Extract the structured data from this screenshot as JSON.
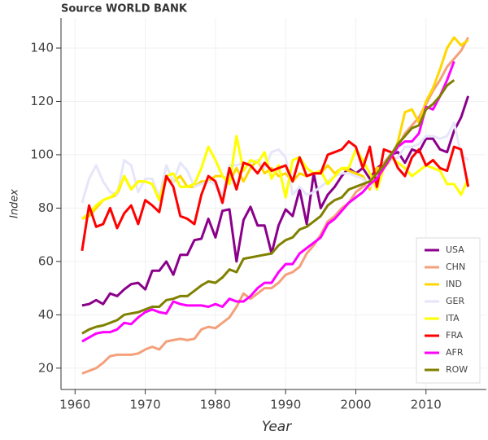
{
  "chart_data": {
    "type": "line",
    "title": "Source WORLD BANK",
    "xlabel": "Year",
    "ylabel": "Index",
    "x": [
      1961,
      1962,
      1963,
      1964,
      1965,
      1966,
      1967,
      1968,
      1969,
      1970,
      1971,
      1972,
      1973,
      1974,
      1975,
      1976,
      1977,
      1978,
      1979,
      1980,
      1981,
      1982,
      1983,
      1984,
      1985,
      1986,
      1987,
      1988,
      1989,
      1990,
      1991,
      1992,
      1993,
      1994,
      1995,
      1996,
      1997,
      1998,
      1999,
      2000,
      2001,
      2002,
      2003,
      2004,
      2005,
      2006,
      2007,
      2008,
      2009,
      2010,
      2011,
      2012,
      2013,
      2014,
      2015,
      2016
    ],
    "series": [
      {
        "name": "USA",
        "color": "#8b008b",
        "values": [
          43.5,
          44,
          45.5,
          44,
          48,
          47,
          49.5,
          51.5,
          52,
          49.5,
          56.5,
          56.5,
          60,
          55,
          62.5,
          62.5,
          68,
          68.5,
          76,
          69,
          79,
          79.5,
          60,
          75.5,
          80.5,
          73.5,
          73.5,
          63,
          73.5,
          79.5,
          77,
          87,
          74,
          93,
          80,
          85,
          88,
          92,
          95,
          93,
          95,
          91,
          95,
          97,
          100,
          101,
          97,
          102,
          101,
          106,
          106,
          102,
          101,
          109,
          114,
          122
        ]
      },
      {
        "name": "CHN",
        "color": "#f4a07a",
        "values": [
          18,
          19,
          20,
          22,
          24.5,
          25,
          25,
          25,
          25.5,
          27,
          28,
          27,
          30,
          30.5,
          31,
          30.5,
          31,
          34.5,
          35.5,
          35,
          37,
          39,
          43,
          48,
          46,
          48,
          50,
          50,
          52,
          55,
          56,
          58,
          63,
          66,
          70,
          75,
          77,
          80,
          82,
          86,
          88,
          90,
          94,
          97,
          100,
          103,
          108,
          111,
          114,
          119,
          124,
          128,
          133,
          136,
          139,
          144
        ]
      },
      {
        "name": "IND",
        "color": "#ffd700",
        "values": [
          76,
          77,
          80,
          83,
          84,
          85,
          92,
          87,
          90,
          90,
          89,
          83,
          91,
          90,
          92,
          88,
          88,
          90,
          90,
          92,
          92,
          90,
          95,
          90,
          95,
          98,
          93,
          95,
          92,
          93,
          90,
          93,
          92,
          93,
          93,
          96,
          93,
          95,
          94,
          93,
          92,
          87,
          95,
          95,
          98,
          105,
          116,
          117,
          112,
          120,
          125,
          132,
          140,
          144,
          141,
          143
        ]
      },
      {
        "name": "GER",
        "color": "#e6e6fa",
        "values": [
          82,
          91,
          96,
          90,
          86,
          85,
          98,
          96,
          86,
          91,
          91,
          84,
          96,
          90,
          97,
          94,
          88,
          89,
          90,
          89,
          85,
          96,
          96,
          97,
          97,
          98,
          95,
          101,
          102,
          99,
          85,
          88,
          85,
          86,
          88,
          90,
          92,
          93,
          93,
          92,
          91,
          88,
          92,
          96,
          98,
          99,
          103,
          103,
          104,
          107,
          107,
          106,
          107,
          112,
          100,
          98
        ]
      },
      {
        "name": "ITA",
        "color": "#ffff00",
        "values": [
          76,
          78,
          81,
          83,
          84,
          86,
          92,
          87,
          90,
          90,
          89,
          83,
          92,
          93,
          88,
          88,
          89,
          95,
          103,
          98,
          92,
          89,
          107,
          94,
          98,
          97,
          101,
          91,
          96,
          84,
          98,
          99,
          95,
          93,
          94,
          89,
          92,
          95,
          95,
          102,
          98,
          93,
          87,
          95,
          99,
          97,
          95,
          92,
          94,
          96,
          95,
          94,
          89,
          89,
          85,
          91
        ]
      },
      {
        "name": "FRA",
        "color": "#ff0000",
        "values": [
          64,
          81,
          73,
          74,
          80,
          72.5,
          78,
          81,
          74,
          83,
          81,
          78.5,
          92,
          88,
          77,
          76,
          74,
          85,
          92,
          90,
          82,
          95,
          87,
          97,
          96,
          93,
          97,
          94,
          95,
          96,
          90,
          99,
          92,
          93,
          93,
          100,
          101,
          102,
          105,
          103,
          95,
          103,
          88,
          102,
          101,
          95,
          92,
          99,
          102,
          96,
          98,
          95,
          94,
          103,
          102,
          88
        ]
      },
      {
        "name": "AFR",
        "color": "#ff00ff",
        "values": [
          30,
          31.5,
          33,
          33.5,
          33.5,
          34.5,
          37,
          36.5,
          39,
          41,
          42,
          41,
          40.5,
          45,
          44,
          43.5,
          43.5,
          43.5,
          43,
          44,
          43,
          46,
          45,
          45,
          47,
          50,
          52,
          52,
          56,
          59,
          59,
          63,
          65,
          67,
          69,
          74,
          76,
          79,
          82,
          84,
          86,
          89,
          91,
          95,
          99,
          103,
          105,
          105,
          108,
          118,
          117,
          122,
          128,
          135,
          null,
          null
        ]
      },
      {
        "name": "ROW",
        "color": "#808000",
        "values": [
          33,
          34.5,
          35.5,
          36,
          37,
          38,
          40,
          40.5,
          41,
          42,
          43,
          43,
          45.5,
          46,
          47,
          47,
          49,
          51,
          52.5,
          52,
          54,
          57,
          56,
          61,
          61.5,
          62,
          62.5,
          63,
          66,
          68,
          69,
          72,
          73,
          75,
          77,
          81,
          83,
          84,
          87,
          88,
          89,
          90,
          93,
          96,
          100,
          104,
          107,
          110,
          111,
          117,
          119,
          122,
          126,
          128,
          null,
          null
        ]
      }
    ],
    "xlim": [
      1958,
      2018.6
    ],
    "ylim": [
      12,
      151.3
    ],
    "xticks": [
      1960,
      1970,
      1980,
      1990,
      2000,
      2010
    ],
    "yticks": [
      20,
      40,
      60,
      80,
      100,
      120,
      140
    ],
    "grid": true,
    "legend": "lower right"
  }
}
